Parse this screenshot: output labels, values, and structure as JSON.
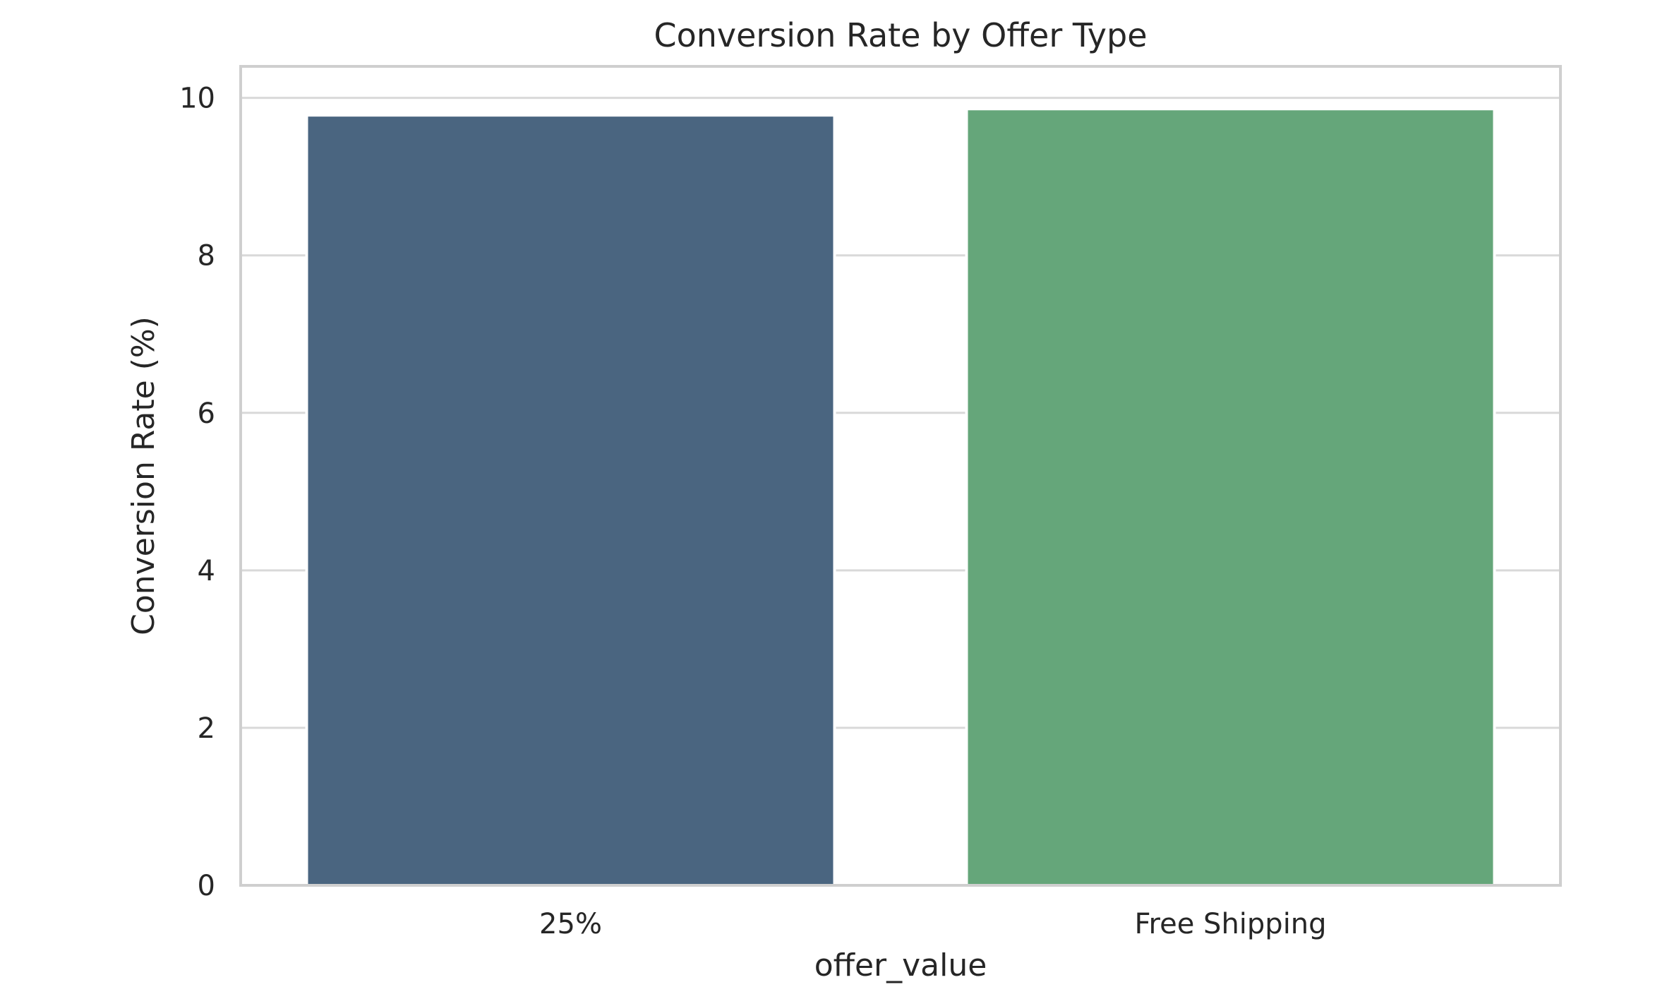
{
  "chart_data": {
    "type": "bar",
    "title": "Conversion Rate by Offer Type",
    "xlabel": "offer_value",
    "ylabel": "Conversion Rate (%)",
    "categories": [
      "25%",
      "Free Shipping"
    ],
    "values": [
      9.78,
      9.86
    ],
    "ylim": [
      0,
      10.4
    ],
    "yticks": [
      0,
      2,
      4,
      6,
      8,
      10
    ],
    "ytick_labels": [
      "0",
      "2",
      "4",
      "6",
      "8",
      "10"
    ],
    "grid": true,
    "legend": "none",
    "colors": [
      "#4a6580",
      "#65a67a"
    ]
  }
}
